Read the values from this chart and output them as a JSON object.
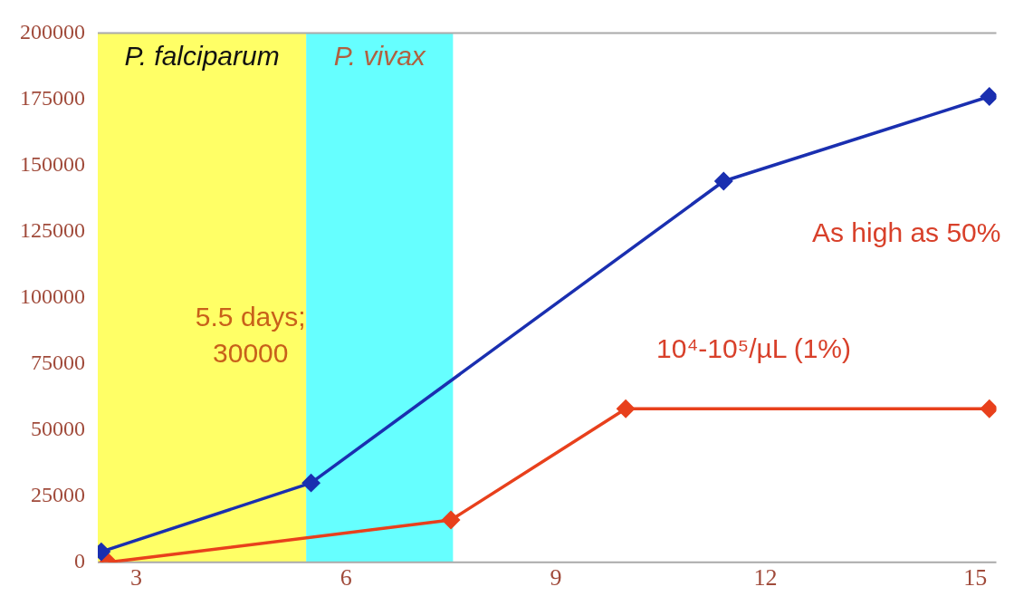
{
  "chart_data": {
    "type": "line",
    "xlim": [
      2.45,
      15.3
    ],
    "xticks": [
      3,
      6,
      9,
      12,
      15
    ],
    "ylim": [
      0,
      200000
    ],
    "yticks": [
      0,
      25000,
      50000,
      75000,
      100000,
      125000,
      150000,
      175000,
      200000
    ],
    "grid": false,
    "legend": false,
    "marker": "diamond",
    "line_style": "solid",
    "series": [
      {
        "color": "#1a2fb0",
        "x": [
          2.5,
          5.5,
          11.4,
          15.2
        ],
        "values": [
          4000,
          30000,
          144000,
          176000
        ]
      },
      {
        "color": "#e8401c",
        "x": [
          2.6,
          7.5,
          10,
          15.2
        ],
        "values": [
          0,
          16000,
          58000,
          58000
        ]
      }
    ],
    "bands": [
      {
        "axis": "x",
        "from": 2.45,
        "to": 5.43,
        "label": "P. falciparum",
        "color": "#ffff66"
      },
      {
        "axis": "x",
        "from": 5.43,
        "to": 7.53,
        "label": "P. vivax",
        "color": "#66ffff"
      }
    ],
    "annotations": [
      "5.5 days; 30000",
      "As high as 50%",
      "10⁴-10⁵/µL (1%)"
    ]
  }
}
